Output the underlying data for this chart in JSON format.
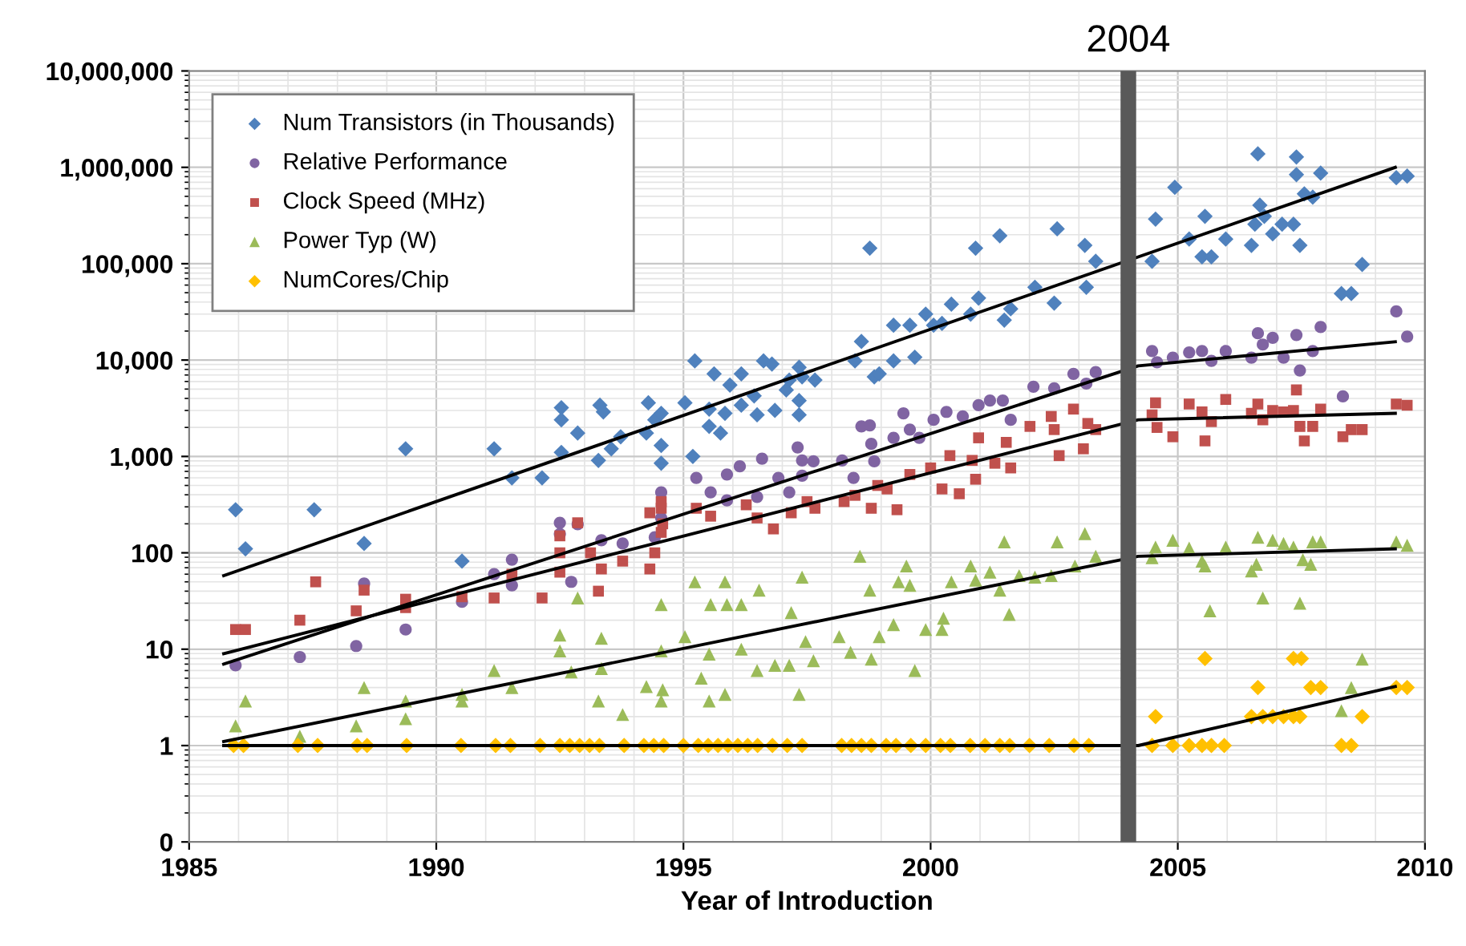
{
  "chart_data": {
    "type": "scatter",
    "xlabel": "Year of Introduction",
    "xlim": [
      1985,
      2010
    ],
    "xticks": [
      1985,
      1990,
      1995,
      2000,
      2005,
      2010
    ],
    "log": "y",
    "ylim": [
      0.1,
      10000000
    ],
    "yticks": [
      {
        "value": 0.1,
        "label": "0"
      },
      1,
      10,
      100,
      {
        "value": 1000,
        "label": "1,000"
      },
      {
        "value": 10000,
        "label": "10,000"
      },
      {
        "value": 100000,
        "label": "100,000"
      },
      {
        "value": 1000000,
        "label": "1,000,000"
      },
      {
        "value": 10000000,
        "label": "10,000,000"
      }
    ],
    "grid": true,
    "legend": "top left",
    "ref_lines": [
      {
        "axis": "x",
        "value": 2004,
        "label": "2004",
        "color": "#595959"
      }
    ],
    "series": [
      {
        "name": "Num Transistors (in Thousands)",
        "marker": "diamond",
        "color": "#4f81bd",
        "x": [
          1985.94,
          1986.14,
          1987.53,
          1989.38,
          1988.54,
          1990.52,
          1991.17,
          1991.53,
          1992.14,
          1992.53,
          1992.53,
          1992.53,
          1992.86,
          1993.31,
          1993.38,
          1993.54,
          1993.28,
          1993.73,
          1994.29,
          1994.42,
          1994.55,
          1994.55,
          1994.55,
          1994.25,
          1995.03,
          1995.23,
          1995.19,
          1995.52,
          1995.62,
          1995.52,
          1995.75,
          1995.84,
          1995.94,
          1996.17,
          1996.17,
          1996.43,
          1996.49,
          1996.62,
          1996.79,
          1996.85,
          1997.08,
          1997.14,
          1997.34,
          1997.4,
          1997.34,
          1997.34,
          1997.66,
          1998.6,
          1998.47,
          1998.77,
          1998.86,
          1998.96,
          1999.25,
          1999.25,
          1999.58,
          1999.68,
          1999.9,
          2000.06,
          2000.23,
          2000.42,
          2000.81,
          2000.91,
          2000.97,
          2001.4,
          2001.49,
          2001.62,
          2002.11,
          2002.5,
          2002.56,
          2003.12,
          2003.15,
          2003.34,
          2004.48,
          2004.55,
          2004.94,
          2005.23,
          2005.49,
          2005.68,
          2005.55,
          2005.97,
          2006.49,
          2006.56,
          2006.62,
          2006.66,
          2006.75,
          2006.92,
          2007.11,
          2007.34,
          2007.47,
          2007.4,
          2007.4,
          2007.56,
          2007.73,
          2007.89,
          2008.31,
          2008.51,
          2008.73,
          2009.42,
          2009.64
        ],
        "values": [
          280,
          110,
          280,
          1200,
          125,
          82,
          1200,
          600,
          600,
          3200,
          2400,
          1100,
          1750,
          3400,
          2900,
          1200,
          910,
          1600,
          3600,
          2400,
          2800,
          1300,
          850,
          1750,
          3600,
          9800,
          1000,
          3100,
          7200,
          2050,
          1750,
          2800,
          5500,
          7200,
          3400,
          4250,
          2700,
          9800,
          9100,
          3000,
          4900,
          6200,
          8400,
          6700,
          3800,
          2700,
          6200,
          15600,
          9800,
          145000,
          6700,
          7200,
          9800,
          23000,
          23000,
          10700,
          30000,
          23000,
          24000,
          38000,
          30000,
          145000,
          44000,
          195000,
          26000,
          34000,
          57000,
          39000,
          230000,
          155000,
          57000,
          106000,
          106000,
          290000,
          620000,
          180000,
          118000,
          118000,
          310000,
          180000,
          155000,
          257000,
          1380000,
          405000,
          310000,
          204000,
          257000,
          257000,
          155000,
          1280000,
          840000,
          530000,
          490000,
          870000,
          49000,
          49000,
          98000,
          780000,
          810000
        ]
      },
      {
        "name": "Relative Performance",
        "marker": "circle",
        "color": "#8064a2",
        "x": [
          1985.94,
          1987.24,
          1988.38,
          1988.54,
          1989.38,
          1990.52,
          1991.17,
          1991.53,
          1991.53,
          1992.5,
          1992.5,
          1992.73,
          1992.86,
          1993.34,
          1993.77,
          1994.55,
          1994.55,
          1994.42,
          1995.26,
          1995.55,
          1995.88,
          1996.14,
          1995.88,
          1996.59,
          1996.49,
          1996.92,
          1997.14,
          1997.31,
          1997.4,
          1997.63,
          1997.4,
          1998.21,
          1998.44,
          1998.6,
          1998.77,
          1998.86,
          1998.8,
          1999.25,
          1999.45,
          1999.58,
          1999.77,
          2000.06,
          2000.32,
          2000.65,
          2000.97,
          2001.2,
          2001.46,
          2001.62,
          2002.08,
          2002.5,
          2002.89,
          2003.15,
          2003.34,
          2004.48,
          2004.58,
          2004.9,
          2005.23,
          2005.49,
          2005.68,
          2005.97,
          2006.49,
          2006.62,
          2006.72,
          2006.92,
          2007.14,
          2007.4,
          2007.47,
          2007.73,
          2007.89,
          2008.34,
          2009.42,
          2009.64
        ],
        "values": [
          6.8,
          8.3,
          10.8,
          48,
          16,
          31,
          60,
          85,
          46,
          205,
          157,
          50,
          198,
          135,
          125,
          425,
          230,
          145,
          600,
          425,
          650,
          790,
          350,
          950,
          380,
          600,
          425,
          1240,
          910,
          890,
          630,
          910,
          600,
          2050,
          2100,
          890,
          1350,
          1560,
          2800,
          1900,
          1560,
          2400,
          2900,
          2600,
          3400,
          3800,
          3800,
          2400,
          5300,
          5100,
          7200,
          5700,
          7500,
          12400,
          9500,
          10600,
          12000,
          12400,
          9800,
          12400,
          10600,
          19000,
          14500,
          17000,
          10600,
          18200,
          7800,
          12400,
          22000,
          4200,
          32000,
          17500
        ]
      },
      {
        "name": "Clock Speed (MHz)",
        "marker": "square",
        "color": "#c0504d",
        "x": [
          1985.94,
          1986.14,
          1987.24,
          1987.56,
          1988.38,
          1988.54,
          1989.38,
          1989.38,
          1990.52,
          1991.17,
          1991.53,
          1992.14,
          1992.5,
          1992.5,
          1992.5,
          1992.86,
          1993.12,
          1993.28,
          1993.34,
          1993.77,
          1994.55,
          1994.55,
          1994.42,
          1994.32,
          1994.55,
          1994.32,
          1994.58,
          1995.26,
          1995.55,
          1996.27,
          1996.49,
          1996.82,
          1997.18,
          1997.5,
          1997.66,
          1998.25,
          1998.47,
          1998.8,
          1998.93,
          1999.12,
          1999.32,
          1999.58,
          2000.0,
          2000.23,
          2000.39,
          2000.58,
          2000.84,
          2000.91,
          2000.97,
          2001.3,
          2001.53,
          2001.62,
          2002.01,
          2002.44,
          2002.5,
          2002.6,
          2002.89,
          2003.09,
          2003.18,
          2003.34,
          2004.55,
          2004.48,
          2004.58,
          2004.9,
          2005.23,
          2005.49,
          2005.68,
          2005.55,
          2005.97,
          2006.49,
          2006.62,
          2006.72,
          2006.92,
          2007.14,
          2007.34,
          2007.4,
          2007.47,
          2007.56,
          2007.73,
          2007.89,
          2008.34,
          2008.51,
          2008.73,
          2009.42,
          2009.64
        ],
        "values": [
          16,
          16,
          20,
          50,
          25,
          41,
          33,
          27,
          35,
          34,
          60,
          34,
          150,
          100,
          63,
          205,
          100,
          40,
          68,
          82,
          340,
          163,
          100,
          68,
          290,
          260,
          200,
          290,
          240,
          315,
          230,
          177,
          260,
          340,
          290,
          340,
          395,
          290,
          500,
          460,
          280,
          650,
          760,
          460,
          1020,
          410,
          910,
          580,
          1560,
          850,
          1400,
          760,
          2050,
          2600,
          1900,
          1020,
          3100,
          1200,
          2200,
          1900,
          3600,
          2700,
          2000,
          1600,
          3500,
          2900,
          2300,
          1450,
          3900,
          2800,
          3500,
          2400,
          3000,
          2900,
          3000,
          4900,
          2050,
          1450,
          2050,
          3100,
          1600,
          1900,
          1900,
          3500,
          3400
        ]
      },
      {
        "name": "Power Typ (W)",
        "marker": "triangle",
        "color": "#9bbb59",
        "x": [
          1985.94,
          1986.14,
          1987.24,
          1988.38,
          1988.54,
          1989.38,
          1989.38,
          1990.52,
          1990.52,
          1991.17,
          1991.53,
          1992.5,
          1992.5,
          1992.73,
          1992.86,
          1993.28,
          1993.34,
          1993.34,
          1993.77,
          1994.25,
          1994.55,
          1994.55,
          1994.58,
          1994.55,
          1995.23,
          1995.03,
          1995.36,
          1995.52,
          1995.52,
          1995.55,
          1995.84,
          1995.84,
          1995.88,
          1996.17,
          1996.17,
          1996.49,
          1996.53,
          1996.85,
          1997.14,
          1997.18,
          1997.34,
          1997.4,
          1997.47,
          1997.63,
          1998.15,
          1998.38,
          1998.57,
          1998.77,
          1998.8,
          1998.96,
          1999.25,
          1999.35,
          1999.51,
          1999.58,
          1999.68,
          1999.9,
          2000.23,
          2000.26,
          2000.42,
          2000.81,
          2000.91,
          2001.2,
          2001.4,
          2001.49,
          2001.59,
          2001.79,
          2002.11,
          2002.44,
          2002.56,
          2002.92,
          2003.12,
          2003.34,
          2004.48,
          2004.55,
          2004.9,
          2005.23,
          2005.49,
          2005.55,
          2005.65,
          2005.97,
          2006.49,
          2006.59,
          2006.62,
          2006.72,
          2006.92,
          2007.14,
          2007.34,
          2007.47,
          2007.53,
          2007.69,
          2007.73,
          2007.89,
          2008.31,
          2008.51,
          2008.73,
          2009.42,
          2009.64
        ],
        "values": [
          1.6,
          2.9,
          1.25,
          1.6,
          4.0,
          2.9,
          1.9,
          3.4,
          2.9,
          6.0,
          4.0,
          14,
          9.6,
          5.8,
          34,
          2.9,
          13,
          6.3,
          2.1,
          4.1,
          29,
          9.6,
          3.8,
          2.9,
          50,
          13.5,
          5.0,
          2.9,
          8.9,
          29,
          50,
          3.4,
          29,
          29,
          10,
          6.0,
          41,
          6.8,
          6.8,
          24,
          3.4,
          56,
          12,
          7.6,
          13.5,
          9.3,
          92,
          41,
          7.9,
          13.5,
          18,
          50,
          73,
          46,
          6.0,
          16,
          16,
          21,
          50,
          73,
          52,
          63,
          41,
          130,
          23,
          58,
          56,
          58,
          130,
          73,
          158,
          92,
          89,
          115,
          135,
          112,
          82,
          73,
          25,
          115,
          65,
          76,
          145,
          34,
          135,
          125,
          115,
          30,
          85,
          76,
          130,
          130,
          2.3,
          4.0,
          7.9,
          130,
          120
        ]
      },
      {
        "name": "NumCores/Chip",
        "marker": "diamond",
        "color": "#ffc000",
        "x": [
          1985.9,
          1986.1,
          1987.2,
          1987.6,
          1988.4,
          1988.6,
          1989.4,
          1990.5,
          1991.2,
          1991.5,
          1992.1,
          1992.5,
          1992.7,
          1992.9,
          1993.1,
          1993.3,
          1993.8,
          1994.2,
          1994.4,
          1994.6,
          1995.0,
          1995.3,
          1995.5,
          1995.7,
          1995.9,
          1996.1,
          1996.3,
          1996.5,
          1996.8,
          1997.1,
          1997.4,
          1998.2,
          1998.4,
          1998.6,
          1998.8,
          1999.1,
          1999.3,
          1999.6,
          1999.9,
          2000.2,
          2000.4,
          2000.8,
          2001.1,
          2001.4,
          2001.6,
          2002.0,
          2002.4,
          2002.9,
          2003.2,
          2004.48,
          2004.55,
          2004.9,
          2005.23,
          2005.49,
          2005.68,
          2005.94,
          2005.55,
          2006.49,
          2006.62,
          2006.72,
          2006.92,
          2007.14,
          2007.34,
          2007.47,
          2007.34,
          2007.5,
          2007.69,
          2007.89,
          2008.31,
          2008.51,
          2008.73,
          2009.42,
          2009.64
        ],
        "values": [
          1,
          1,
          1,
          1,
          1,
          1,
          1,
          1,
          1,
          1,
          1,
          1,
          1,
          1,
          1,
          1,
          1,
          1,
          1,
          1,
          1,
          1,
          1,
          1,
          1,
          1,
          1,
          1,
          1,
          1,
          1,
          1,
          1,
          1,
          1,
          1,
          1,
          1,
          1,
          1,
          1,
          1,
          1,
          1,
          1,
          1,
          1,
          1,
          1,
          1,
          2,
          1,
          1,
          1,
          1,
          1,
          8,
          2,
          4,
          2,
          2,
          2,
          2,
          2,
          8,
          8,
          4,
          4,
          1,
          1,
          2,
          4,
          4
        ]
      },
      {
        "type": "line",
        "color": "#000000",
        "x": [
          1985.7,
          2009.4
        ],
        "values": [
          58,
          1000000
        ]
      },
      {
        "type": "line",
        "color": "#000000",
        "x": [
          1985.7,
          2004.2,
          2009.4
        ],
        "values": [
          7,
          8700,
          15500
        ]
      },
      {
        "type": "line",
        "color": "#000000",
        "x": [
          1985.7,
          2004.2,
          2009.4
        ],
        "values": [
          9,
          2400,
          2800
        ]
      },
      {
        "type": "line",
        "color": "#000000",
        "x": [
          1985.7,
          2004.2,
          2009.4
        ],
        "values": [
          1.1,
          92,
          110
        ]
      },
      {
        "type": "line",
        "color": "#000000",
        "x": [
          1985.7,
          2004.2,
          2009.4
        ],
        "values": [
          1,
          1,
          4.1
        ]
      }
    ]
  }
}
